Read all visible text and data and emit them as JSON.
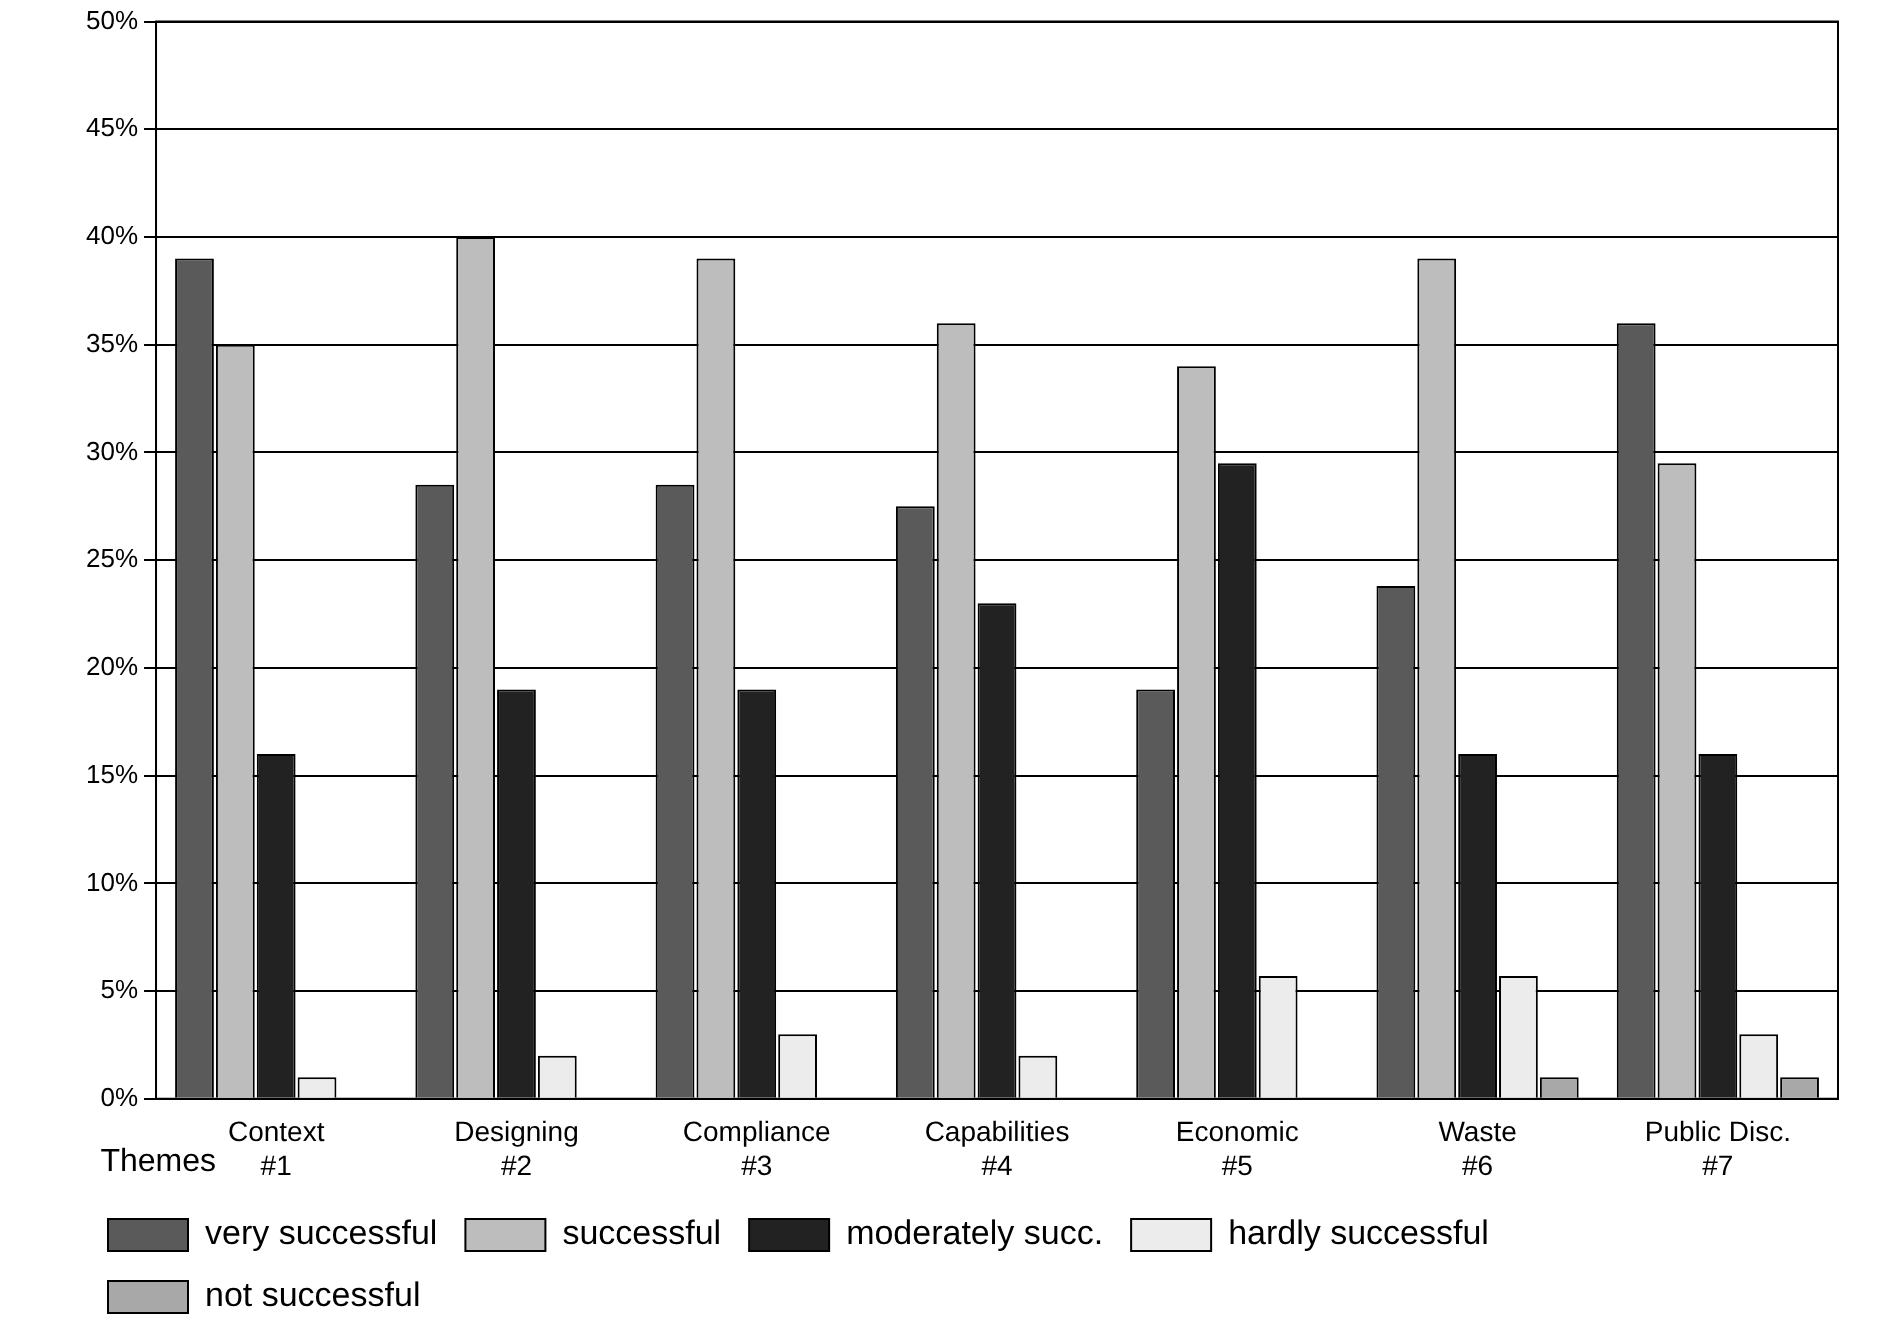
{
  "chart_data": {
    "type": "bar",
    "xlabel": "Themes",
    "categories": [
      "Context\n#1",
      "Designing\n#2",
      "Compliance\n#3",
      "Capabilities\n#4",
      "Economic\n#5",
      "Waste\n#6",
      "Public Disc.\n#7"
    ],
    "series": [
      {
        "name": "very successful",
        "color": "#5a5a5a",
        "values": [
          39,
          28.5,
          28.5,
          27.5,
          19,
          23.8,
          36
        ]
      },
      {
        "name": "successful",
        "color": "#bdbdbd",
        "values": [
          35,
          40,
          39,
          36,
          34,
          39,
          29.5
        ]
      },
      {
        "name": "moderately succ.",
        "color": "#222222",
        "values": [
          16,
          19,
          19,
          23,
          29.5,
          16,
          16
        ]
      },
      {
        "name": "hardly successful",
        "color": "#ececec",
        "values": [
          1,
          2,
          3,
          2,
          5.7,
          5.7,
          3
        ]
      },
      {
        "name": "not successful",
        "color": "#a8a8a8",
        "values": [
          0,
          0,
          0,
          0,
          0,
          1,
          1
        ]
      }
    ],
    "ylim": [
      0,
      50
    ],
    "yticks": [
      {
        "value": 0,
        "label": "0%"
      },
      {
        "value": 5,
        "label": "5%"
      },
      {
        "value": 10,
        "label": "10%"
      },
      {
        "value": 15,
        "label": "15%"
      },
      {
        "value": 20,
        "label": "20%"
      },
      {
        "value": 25,
        "label": "25%"
      },
      {
        "value": 30,
        "label": "30%"
      },
      {
        "value": 35,
        "label": "35%"
      },
      {
        "value": 40,
        "label": "40%"
      },
      {
        "value": 45,
        "label": "45%"
      },
      {
        "value": 50,
        "label": "50%"
      }
    ],
    "grid": "y",
    "legend": "bottom"
  }
}
